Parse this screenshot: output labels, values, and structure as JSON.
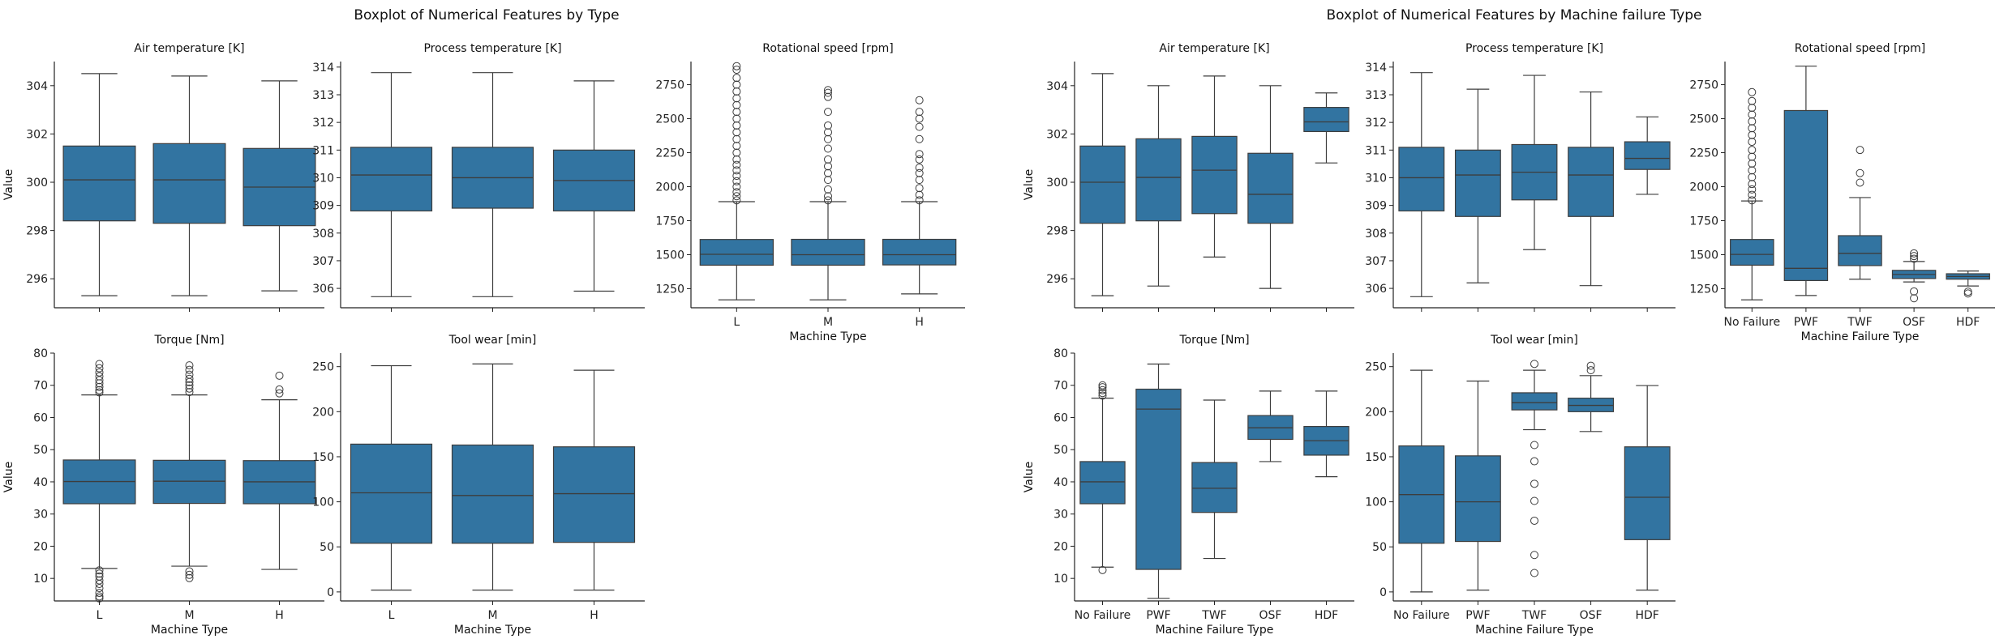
{
  "figures": [
    {
      "title": "Boxplot of Numerical Features by Type",
      "xlabel": "Machine Type",
      "ylabel": "Value"
    },
    {
      "title": "Boxplot of Numerical Features by Machine failure Type",
      "xlabel": "Machine Failure Type",
      "ylabel": "Value"
    }
  ],
  "colors": {
    "box": "#3274a1",
    "line": "#3d3d3d",
    "axis": "#222222"
  },
  "chart_data": [
    {
      "type": "boxplot",
      "figure": 0,
      "title": "Air temperature [K]",
      "xlabel": "",
      "ylabel": "Value",
      "categories": [
        "L",
        "M",
        "H"
      ],
      "show_xticklabels": false,
      "ylim": [
        294.8,
        305.0
      ],
      "yticks": [
        296,
        298,
        300,
        302,
        304
      ],
      "boxes": [
        {
          "whislo": 295.3,
          "q1": 298.4,
          "med": 300.1,
          "q3": 301.5,
          "whishi": 304.5,
          "fliers": []
        },
        {
          "whislo": 295.3,
          "q1": 298.3,
          "med": 300.1,
          "q3": 301.6,
          "whishi": 304.4,
          "fliers": []
        },
        {
          "whislo": 295.5,
          "q1": 298.2,
          "med": 299.8,
          "q3": 301.4,
          "whishi": 304.2,
          "fliers": []
        }
      ]
    },
    {
      "type": "boxplot",
      "figure": 0,
      "title": "Process temperature [K]",
      "xlabel": "",
      "ylabel": "",
      "categories": [
        "L",
        "M",
        "H"
      ],
      "show_xticklabels": false,
      "ylim": [
        305.3,
        314.2
      ],
      "yticks": [
        306,
        307,
        308,
        309,
        310,
        311,
        312,
        313,
        314
      ],
      "boxes": [
        {
          "whislo": 305.7,
          "q1": 308.8,
          "med": 310.1,
          "q3": 311.1,
          "whishi": 313.8,
          "fliers": []
        },
        {
          "whislo": 305.7,
          "q1": 308.9,
          "med": 310.0,
          "q3": 311.1,
          "whishi": 313.8,
          "fliers": []
        },
        {
          "whislo": 305.9,
          "q1": 308.8,
          "med": 309.9,
          "q3": 311.0,
          "whishi": 313.5,
          "fliers": []
        }
      ]
    },
    {
      "type": "boxplot",
      "figure": 0,
      "title": "Rotational speed [rpm]",
      "xlabel": "Machine Type",
      "ylabel": "",
      "categories": [
        "L",
        "M",
        "H"
      ],
      "show_xticklabels": true,
      "ylim": [
        1110,
        2920
      ],
      "yticks": [
        1250,
        1500,
        1750,
        2000,
        2250,
        2500,
        2750
      ],
      "boxes": [
        {
          "whislo": 1168,
          "q1": 1423,
          "med": 1503,
          "q3": 1612,
          "whishi": 1890,
          "fliers": [
            1900,
            1930,
            1960,
            2000,
            2040,
            2080,
            2120,
            2160,
            2200,
            2250,
            2300,
            2350,
            2400,
            2450,
            2500,
            2550,
            2600,
            2650,
            2700,
            2750,
            2800,
            2860,
            2886
          ]
        },
        {
          "whislo": 1168,
          "q1": 1423,
          "med": 1500,
          "q3": 1613,
          "whishi": 1890,
          "fliers": [
            1900,
            1930,
            1980,
            2050,
            2100,
            2150,
            2200,
            2280,
            2350,
            2400,
            2450,
            2550,
            2660,
            2690,
            2710
          ]
        },
        {
          "whislo": 1212,
          "q1": 1425,
          "med": 1500,
          "q3": 1613,
          "whishi": 1890,
          "fliers": [
            1900,
            1940,
            1990,
            2050,
            2100,
            2140,
            2200,
            2240,
            2350,
            2440,
            2500,
            2550,
            2636
          ]
        }
      ]
    },
    {
      "type": "boxplot",
      "figure": 0,
      "title": "Torque [Nm]",
      "xlabel": "Machine Type",
      "ylabel": "Value",
      "categories": [
        "L",
        "M",
        "H"
      ],
      "show_xticklabels": true,
      "ylim": [
        3,
        80
      ],
      "yticks": [
        10,
        20,
        30,
        40,
        50,
        60,
        70,
        80
      ],
      "boxes": [
        {
          "whislo": 13.1,
          "q1": 33.2,
          "med": 40.1,
          "q3": 46.8,
          "whishi": 67.0,
          "fliers": [
            12.5,
            11.5,
            10.6,
            9.4,
            8.3,
            7.0,
            5.5,
            4.4,
            3.8,
            67.8,
            68.5,
            69.5,
            70.6,
            71.6,
            72.8,
            74.0,
            75.3,
            76.6
          ]
        },
        {
          "whislo": 13.8,
          "q1": 33.3,
          "med": 40.2,
          "q3": 46.7,
          "whishi": 67.0,
          "fliers": [
            12.2,
            11.1,
            10.1,
            67.9,
            69.0,
            70.0,
            71.0,
            72.0,
            73.3,
            74.8,
            76.2
          ]
        },
        {
          "whislo": 12.8,
          "q1": 33.2,
          "med": 40.0,
          "q3": 46.6,
          "whishi": 65.5,
          "fliers": [
            67.5,
            68.7,
            73.0
          ]
        }
      ]
    },
    {
      "type": "boxplot",
      "figure": 0,
      "title": "Tool wear [min]",
      "xlabel": "Machine Type",
      "ylabel": "",
      "categories": [
        "L",
        "M",
        "H"
      ],
      "show_xticklabels": true,
      "ylim": [
        -10,
        265
      ],
      "yticks": [
        0,
        50,
        100,
        150,
        200,
        250
      ],
      "boxes": [
        {
          "whislo": 2,
          "q1": 54,
          "med": 110,
          "q3": 164,
          "whishi": 251,
          "fliers": []
        },
        {
          "whislo": 2,
          "q1": 54,
          "med": 107,
          "q3": 163,
          "whishi": 253,
          "fliers": []
        },
        {
          "whislo": 2,
          "q1": 55,
          "med": 109,
          "q3": 161,
          "whishi": 246,
          "fliers": []
        }
      ]
    },
    {
      "type": "boxplot",
      "figure": 1,
      "title": "Air temperature [K]",
      "xlabel": "",
      "ylabel": "Value",
      "categories": [
        "No Failure",
        "PWF",
        "TWF",
        "OSF",
        "HDF"
      ],
      "show_xticklabels": false,
      "ylim": [
        294.8,
        305.0
      ],
      "yticks": [
        296,
        298,
        300,
        302,
        304
      ],
      "boxes": [
        {
          "whislo": 295.3,
          "q1": 298.3,
          "med": 300.0,
          "q3": 301.5,
          "whishi": 304.5,
          "fliers": []
        },
        {
          "whislo": 295.7,
          "q1": 298.4,
          "med": 300.2,
          "q3": 301.8,
          "whishi": 304.0,
          "fliers": []
        },
        {
          "whislo": 296.9,
          "q1": 298.7,
          "med": 300.5,
          "q3": 301.9,
          "whishi": 304.4,
          "fliers": []
        },
        {
          "whislo": 295.6,
          "q1": 298.3,
          "med": 299.5,
          "q3": 301.2,
          "whishi": 304.0,
          "fliers": []
        },
        {
          "whislo": 300.8,
          "q1": 302.1,
          "med": 302.5,
          "q3": 303.1,
          "whishi": 303.7,
          "fliers": []
        }
      ]
    },
    {
      "type": "boxplot",
      "figure": 1,
      "title": "Process temperature [K]",
      "xlabel": "",
      "ylabel": "",
      "categories": [
        "No Failure",
        "PWF",
        "TWF",
        "OSF",
        "HDF"
      ],
      "show_xticklabels": false,
      "ylim": [
        305.3,
        314.2
      ],
      "yticks": [
        306,
        307,
        308,
        309,
        310,
        311,
        312,
        313,
        314
      ],
      "boxes": [
        {
          "whislo": 305.7,
          "q1": 308.8,
          "med": 310.0,
          "q3": 311.1,
          "whishi": 313.8,
          "fliers": []
        },
        {
          "whislo": 306.2,
          "q1": 308.6,
          "med": 310.1,
          "q3": 311.0,
          "whishi": 313.2,
          "fliers": []
        },
        {
          "whislo": 307.4,
          "q1": 309.2,
          "med": 310.2,
          "q3": 311.2,
          "whishi": 313.7,
          "fliers": []
        },
        {
          "whislo": 306.1,
          "q1": 308.6,
          "med": 310.1,
          "q3": 311.1,
          "whishi": 313.1,
          "fliers": []
        },
        {
          "whislo": 309.4,
          "q1": 310.3,
          "med": 310.7,
          "q3": 311.3,
          "whishi": 312.2,
          "fliers": []
        }
      ]
    },
    {
      "type": "boxplot",
      "figure": 1,
      "title": "Rotational speed [rpm]",
      "xlabel": "Machine Failure Type",
      "ylabel": "",
      "categories": [
        "No Failure",
        "PWF",
        "TWF",
        "OSF",
        "HDF"
      ],
      "show_xticklabels": true,
      "ylim": [
        1110,
        2920
      ],
      "yticks": [
        1250,
        1500,
        1750,
        2000,
        2250,
        2500,
        2750
      ],
      "boxes": [
        {
          "whislo": 1168,
          "q1": 1423,
          "med": 1502,
          "q3": 1612,
          "whishi": 1895,
          "fliers": [
            1900,
            1940,
            1980,
            2020,
            2070,
            2120,
            2170,
            2220,
            2270,
            2330,
            2380,
            2430,
            2480,
            2530,
            2580,
            2630,
            2695
          ]
        },
        {
          "whislo": 1200,
          "q1": 1310,
          "med": 1400,
          "q3": 2560,
          "whishi": 2886,
          "fliers": []
        },
        {
          "whislo": 1320,
          "q1": 1420,
          "med": 1510,
          "q3": 1640,
          "whishi": 1920,
          "fliers": [
            2030,
            2100,
            2270
          ]
        },
        {
          "whislo": 1300,
          "q1": 1325,
          "med": 1355,
          "q3": 1385,
          "whishi": 1450,
          "fliers": [
            1180,
            1230,
            1470,
            1490,
            1510
          ]
        },
        {
          "whislo": 1270,
          "q1": 1320,
          "med": 1340,
          "q3": 1360,
          "whishi": 1380,
          "fliers": [
            1215,
            1228
          ]
        }
      ]
    },
    {
      "type": "boxplot",
      "figure": 1,
      "title": "Torque [Nm]",
      "xlabel": "Machine Failure Type",
      "ylabel": "Value",
      "categories": [
        "No Failure",
        "PWF",
        "TWF",
        "OSF",
        "HDF"
      ],
      "show_xticklabels": true,
      "ylim": [
        3,
        80
      ],
      "yticks": [
        10,
        20,
        30,
        40,
        50,
        60,
        70,
        80
      ],
      "boxes": [
        {
          "whislo": 13.5,
          "q1": 33.2,
          "med": 40.0,
          "q3": 46.3,
          "whishi": 66.0,
          "fliers": [
            12.6,
            66.8,
            67.6,
            68.5,
            69.4,
            70.0
          ]
        },
        {
          "whislo": 3.8,
          "q1": 12.8,
          "med": 62.6,
          "q3": 68.8,
          "whishi": 76.6,
          "fliers": []
        },
        {
          "whislo": 16.2,
          "q1": 30.5,
          "med": 38.0,
          "q3": 46.0,
          "whishi": 65.4,
          "fliers": []
        },
        {
          "whislo": 46.3,
          "q1": 53.2,
          "med": 56.8,
          "q3": 60.6,
          "whishi": 68.2,
          "fliers": []
        },
        {
          "whislo": 41.6,
          "q1": 48.3,
          "med": 52.8,
          "q3": 57.2,
          "whishi": 68.2,
          "fliers": []
        }
      ]
    },
    {
      "type": "boxplot",
      "figure": 1,
      "title": "Tool wear [min]",
      "xlabel": "Machine Failure Type",
      "ylabel": "",
      "categories": [
        "No Failure",
        "PWF",
        "TWF",
        "OSF",
        "HDF"
      ],
      "show_xticklabels": true,
      "ylim": [
        -10,
        265
      ],
      "yticks": [
        0,
        50,
        100,
        150,
        200,
        250
      ],
      "boxes": [
        {
          "whislo": 0,
          "q1": 54,
          "med": 108,
          "q3": 162,
          "whishi": 246,
          "fliers": []
        },
        {
          "whislo": 2,
          "q1": 56,
          "med": 100,
          "q3": 151,
          "whishi": 234,
          "fliers": []
        },
        {
          "whislo": 180,
          "q1": 202,
          "med": 210,
          "q3": 221,
          "whishi": 246,
          "fliers": [
            253,
            163,
            145,
            120,
            101,
            79,
            41,
            21
          ]
        },
        {
          "whislo": 178,
          "q1": 200,
          "med": 207,
          "q3": 215,
          "whishi": 240,
          "fliers": [
            246,
            251
          ]
        },
        {
          "whislo": 2,
          "q1": 58,
          "med": 105,
          "q3": 161,
          "whishi": 229,
          "fliers": []
        }
      ]
    }
  ]
}
